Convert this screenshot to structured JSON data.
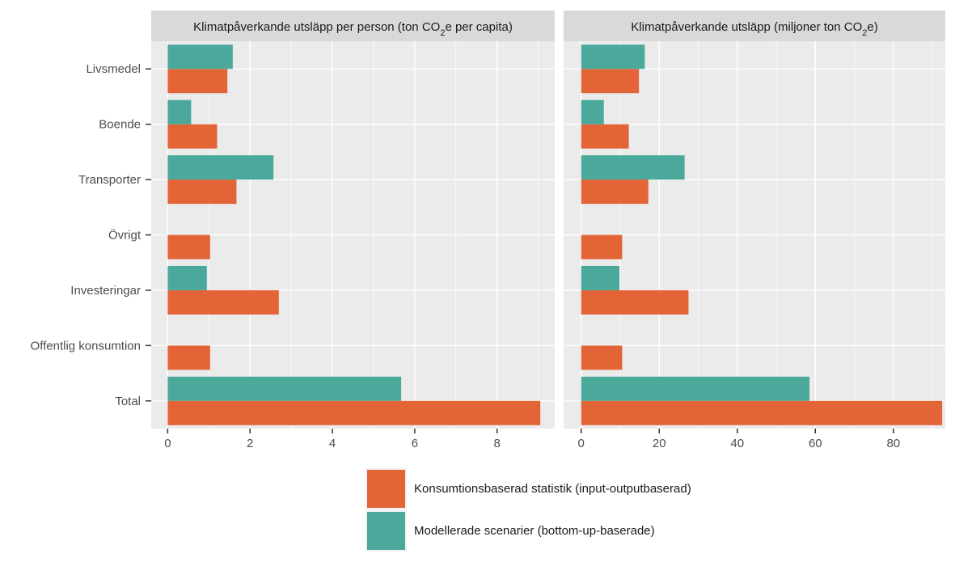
{
  "chart_data": {
    "type": "bar",
    "orientation": "horizontal",
    "categories": [
      "Livsmedel",
      "Boende",
      "Transporter",
      "Övrigt",
      "Investeringar",
      "Offentlig konsumtion",
      "Total"
    ],
    "colors": {
      "consumption": "#E26437",
      "modelled": "#4AA99B",
      "panel_bg": "#EBEBEB",
      "strip_bg": "#D9D9D9",
      "grid": "#FFFFFF"
    },
    "series_labels": {
      "consumption": "Konsumtionsbaserad statistik (input-outputbaserad)",
      "modelled": "Modellerade scenarier (bottom-up-baserade)"
    },
    "panels": [
      {
        "title_parts": [
          "Klimatpåverkande utsläpp per person (ton CO",
          "2",
          "e per capita)"
        ],
        "xlim": [
          -0.4,
          9.4
        ],
        "ticks": [
          0,
          2,
          4,
          6,
          8
        ],
        "tick_labels": [
          "0",
          "2",
          "4",
          "6",
          "8"
        ],
        "series": [
          {
            "key": "consumption",
            "values": [
              1.45,
              1.2,
              1.67,
              1.03,
              2.7,
              1.03,
              9.05
            ]
          },
          {
            "key": "modelled",
            "values": [
              1.58,
              0.57,
              2.57,
              null,
              0.95,
              null,
              5.67
            ]
          }
        ]
      },
      {
        "title_parts": [
          "Klimatpåverkande utsläpp (miljoner ton CO",
          "2",
          "e)"
        ],
        "xlim": [
          -4.5,
          93.3
        ],
        "ticks": [
          0,
          20,
          40,
          60,
          80
        ],
        "tick_labels": [
          "0",
          "20",
          "40",
          "60",
          "80"
        ],
        "series": [
          {
            "key": "consumption",
            "values": [
              14.8,
              12.2,
              17.2,
              10.5,
              27.5,
              10.5,
              92.5
            ]
          },
          {
            "key": "modelled",
            "values": [
              16.3,
              5.8,
              26.5,
              null,
              9.8,
              null,
              58.5
            ]
          }
        ]
      }
    ],
    "legend": {
      "position": "bottom",
      "entries": [
        {
          "key": "consumption",
          "label": "Konsumtionsbaserad statistik (input-outputbaserad)"
        },
        {
          "key": "modelled",
          "label": "Modellerade scenarier (bottom-up-baserade)"
        }
      ]
    },
    "grid": true
  }
}
